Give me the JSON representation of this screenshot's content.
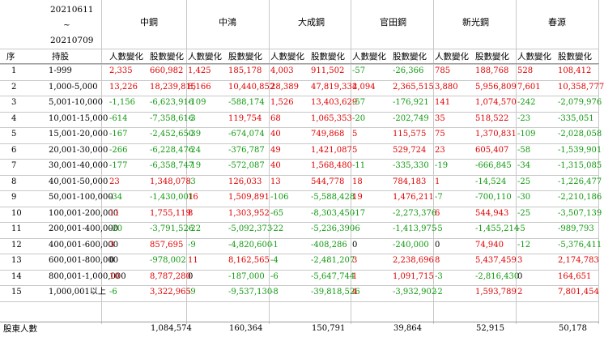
{
  "date_range": {
    "start": "20210611",
    "tilde": "~",
    "end": "20210709"
  },
  "columns": {
    "seq": "序",
    "range": "持股",
    "people": "人數變化",
    "shares": "股數變化"
  },
  "companies": [
    "中鋼",
    "中鴻",
    "大成鋼",
    "官田鋼",
    "新光鋼",
    "春源"
  ],
  "rows": [
    {
      "seq": "1",
      "range": "1-999",
      "values": [
        [
          "2,335",
          "660,982"
        ],
        [
          "1,425",
          "185,178"
        ],
        [
          "4,003",
          "911,502"
        ],
        [
          "-57",
          "-26,366"
        ],
        [
          "785",
          "188,768"
        ],
        [
          "528",
          "108,412"
        ]
      ]
    },
    {
      "seq": "2",
      "range": "1,000-5,000",
      "values": [
        [
          "13,226",
          "18,239,815"
        ],
        [
          "8,166",
          "10,440,852"
        ],
        [
          "28,389",
          "47,819,334"
        ],
        [
          "2,094",
          "2,365,515"
        ],
        [
          "3,880",
          "5,956,809"
        ],
        [
          "7,601",
          "10,358,777"
        ]
      ]
    },
    {
      "seq": "3",
      "range": "5,001-10,000",
      "values": [
        [
          "-1,156",
          "-6,623,916"
        ],
        [
          "-109",
          "-588,174"
        ],
        [
          "1,526",
          "13,403,629"
        ],
        [
          "-57",
          "-176,921"
        ],
        [
          "141",
          "1,074,570"
        ],
        [
          "-242",
          "-2,079,976"
        ]
      ]
    },
    {
      "seq": "4",
      "range": "10,001-15,000",
      "values": [
        [
          "-614",
          "-7,358,616"
        ],
        [
          "-3",
          "119,754"
        ],
        [
          "68",
          "1,065,353"
        ],
        [
          "-20",
          "-202,749"
        ],
        [
          "35",
          "518,522"
        ],
        [
          "-23",
          "-335,051"
        ]
      ]
    },
    {
      "seq": "5",
      "range": "15,001-20,000",
      "values": [
        [
          "-167",
          "-2,452,650"
        ],
        [
          "-39",
          "-674,074"
        ],
        [
          "40",
          "749,868"
        ],
        [
          "5",
          "115,575"
        ],
        [
          "75",
          "1,370,831"
        ],
        [
          "-109",
          "-2,028,058"
        ]
      ]
    },
    {
      "seq": "6",
      "range": "20,001-30,000",
      "values": [
        [
          "-266",
          "-6,228,476"
        ],
        [
          "-24",
          "-376,787"
        ],
        [
          "49",
          "1,421,087"
        ],
        [
          "5",
          "529,724"
        ],
        [
          "23",
          "605,407"
        ],
        [
          "-58",
          "-1,539,901"
        ]
      ]
    },
    {
      "seq": "7",
      "range": "30,001-40,000",
      "values": [
        [
          "-177",
          "-6,358,747"
        ],
        [
          "-19",
          "-572,087"
        ],
        [
          "40",
          "1,568,480"
        ],
        [
          "-11",
          "-335,330"
        ],
        [
          "-19",
          "-666,845"
        ],
        [
          "-34",
          "-1,315,085"
        ]
      ]
    },
    {
      "seq": "8",
      "range": "40,001-50,000",
      "values": [
        [
          "23",
          "1,348,078"
        ],
        [
          "-3",
          "126,033"
        ],
        [
          "13",
          "544,778"
        ],
        [
          "18",
          "784,183"
        ],
        [
          "1",
          "-14,524"
        ],
        [
          "-25",
          "-1,226,477"
        ]
      ]
    },
    {
      "seq": "9",
      "range": "50,001-100,000",
      "values": [
        [
          "-34",
          "-1,430,001"
        ],
        [
          "16",
          "1,509,891"
        ],
        [
          "-106",
          "-5,588,428"
        ],
        [
          "19",
          "1,476,211"
        ],
        [
          "-7",
          "-700,110"
        ],
        [
          "-30",
          "-2,210,186"
        ]
      ]
    },
    {
      "seq": "10",
      "range": "100,001-200,000",
      "values": [
        [
          "11",
          "1,755,119"
        ],
        [
          "8",
          "1,303,952"
        ],
        [
          "-65",
          "-8,303,450"
        ],
        [
          "-17",
          "-2,273,376"
        ],
        [
          "6",
          "544,943"
        ],
        [
          "-25",
          "-3,507,139"
        ]
      ]
    },
    {
      "seq": "11",
      "range": "200,001-400,000",
      "values": [
        [
          "-20",
          "-3,791,526"
        ],
        [
          "-22",
          "-5,092,373"
        ],
        [
          "-22",
          "-5,236,390"
        ],
        [
          "-6",
          "-1,413,975"
        ],
        [
          "-5",
          "-1,455,214"
        ],
        [
          "-5",
          "-989,793"
        ]
      ]
    },
    {
      "seq": "12",
      "range": "400,001-600,000",
      "values": [
        [
          "3",
          "857,695"
        ],
        [
          "-9",
          "-4,820,600"
        ],
        [
          "-1",
          "-408,286"
        ],
        [
          "0",
          "-240,000"
        ],
        [
          "0",
          "74,940"
        ],
        [
          "-12",
          "-5,376,411"
        ]
      ]
    },
    {
      "seq": "13",
      "range": "600,001-800,000",
      "values": [
        [
          "0",
          "-978,002"
        ],
        [
          "11",
          "8,162,565"
        ],
        [
          "-4",
          "-2,481,207"
        ],
        [
          "3",
          "2,238,696"
        ],
        [
          "8",
          "5,437,459"
        ],
        [
          "3",
          "2,174,783"
        ]
      ]
    },
    {
      "seq": "14",
      "range": "800,001-1,000,000",
      "values": [
        [
          "10",
          "8,787,280"
        ],
        [
          "0",
          "-187,000"
        ],
        [
          "-6",
          "-5,647,744"
        ],
        [
          "1",
          "1,091,715"
        ],
        [
          "-3",
          "-2,816,430"
        ],
        [
          "0",
          "164,651"
        ]
      ]
    },
    {
      "seq": "15",
      "range": "1,000,001以上",
      "values": [
        [
          "-6",
          "3,322,965"
        ],
        [
          "-9",
          "-9,537,130"
        ],
        [
          "-8",
          "-39,818,526"
        ],
        [
          "4",
          "-3,932,902"
        ],
        [
          "-2",
          "1,593,789"
        ],
        [
          "2",
          "7,801,454"
        ]
      ]
    }
  ],
  "footer": {
    "label": "股東人數",
    "totals": [
      "1,084,574",
      "160,364",
      "150,791",
      "39,864",
      "52,915",
      "50,178"
    ]
  },
  "colors": {
    "positive": "#e00000",
    "negative": "#109a10",
    "zero": "#000000",
    "grid": "#c8c8c8"
  }
}
